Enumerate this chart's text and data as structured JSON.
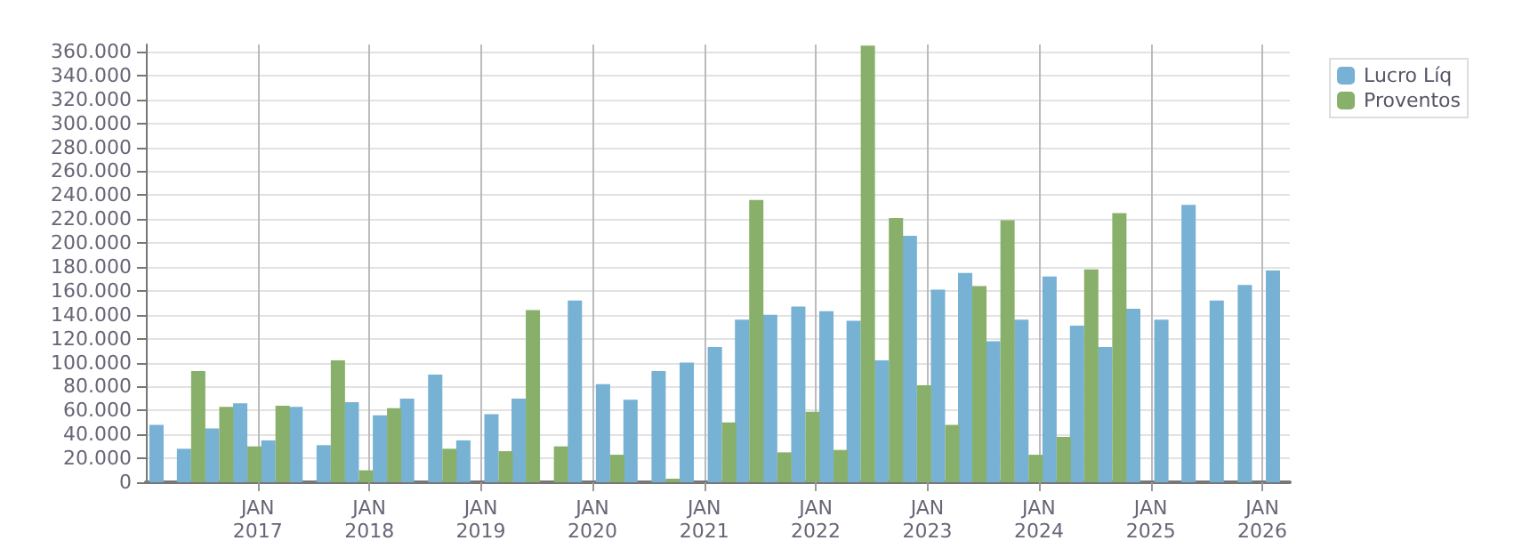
{
  "chart_data": {
    "type": "bar",
    "x": [
      "2016-02-28",
      "2016-05-28",
      "2016-08-28",
      "2016-11-28",
      "2017-02-28",
      "2017-05-28",
      "2017-08-28",
      "2017-11-28",
      "2018-02-28",
      "2018-05-28",
      "2018-08-28",
      "2018-11-28",
      "2019-02-28",
      "2019-05-28",
      "2019-08-28",
      "2019-11-28",
      "2020-02-28",
      "2020-05-28",
      "2020-08-28",
      "2020-11-28",
      "2021-02-28",
      "2021-05-28",
      "2021-08-28",
      "2021-11-28",
      "2022-02-28",
      "2022-05-28",
      "2022-08-28",
      "2022-11-28",
      "2023-02-28",
      "2023-05-28",
      "2023-08-28",
      "2023-11-28",
      "2024-02-28",
      "2024-05-28",
      "2024-08-28",
      "2024-11-28",
      "2025-02-28",
      "2025-05-28",
      "2025-08-28",
      "2025-11-28",
      "2026-02-28"
    ],
    "series": [
      {
        "name": "Lucro Líq",
        "color": "#77b1d4",
        "values": [
          48000,
          28000,
          45000,
          66000,
          35000,
          63000,
          31000,
          67000,
          56000,
          70000,
          90000,
          35000,
          57000,
          70000,
          null,
          152000,
          82000,
          69000,
          93000,
          100000,
          113000,
          136000,
          140000,
          147000,
          143000,
          135000,
          102000,
          206000,
          161000,
          175000,
          118000,
          136000,
          172000,
          131000,
          113000,
          145000,
          136000,
          232000,
          152000,
          165000,
          177000
        ]
      },
      {
        "name": "Proventos",
        "color": "#89b06a",
        "values": [
          null,
          93000,
          63000,
          30000,
          64000,
          null,
          102000,
          10000,
          62000,
          null,
          28000,
          null,
          26000,
          144000,
          30000,
          null,
          23000,
          null,
          3000,
          null,
          50000,
          236000,
          25000,
          59000,
          27000,
          365000,
          221000,
          81000,
          48000,
          164000,
          219000,
          23000,
          38000,
          178000,
          225000,
          null,
          null,
          null,
          null,
          null,
          null
        ]
      }
    ],
    "xlim": [
      "2016-01-01",
      "2026-04-01"
    ],
    "xticks": [
      {
        "value": "2017-01-01",
        "label": "JAN\n2017"
      },
      {
        "value": "2018-01-01",
        "label": "JAN\n2018"
      },
      {
        "value": "2019-01-01",
        "label": "JAN\n2019"
      },
      {
        "value": "2020-01-01",
        "label": "JAN\n2020"
      },
      {
        "value": "2021-01-01",
        "label": "JAN\n2021"
      },
      {
        "value": "2022-01-01",
        "label": "JAN\n2022"
      },
      {
        "value": "2023-01-01",
        "label": "JAN\n2023"
      },
      {
        "value": "2024-01-01",
        "label": "JAN\n2024"
      },
      {
        "value": "2025-01-01",
        "label": "JAN\n2025"
      },
      {
        "value": "2026-01-01",
        "label": "JAN\n2026"
      }
    ],
    "ylim": [
      0,
      366000
    ],
    "yticks": [
      {
        "value": 0,
        "label": "0"
      },
      {
        "value": 20000,
        "label": "20.000"
      },
      {
        "value": 40000,
        "label": "40.000"
      },
      {
        "value": 60000,
        "label": "60.000"
      },
      {
        "value": 80000,
        "label": "80.000"
      },
      {
        "value": 100000,
        "label": "100.000"
      },
      {
        "value": 120000,
        "label": "120.000"
      },
      {
        "value": 140000,
        "label": "140.000"
      },
      {
        "value": 160000,
        "label": "160.000"
      },
      {
        "value": 180000,
        "label": "180.000"
      },
      {
        "value": 200000,
        "label": "200.000"
      },
      {
        "value": 220000,
        "label": "220.000"
      },
      {
        "value": 240000,
        "label": "240.000"
      },
      {
        "value": 260000,
        "label": "260.000"
      },
      {
        "value": 280000,
        "label": "280.000"
      },
      {
        "value": 300000,
        "label": "300.000"
      },
      {
        "value": 320000,
        "label": "320.000"
      },
      {
        "value": 340000,
        "label": "340.000"
      },
      {
        "value": 360000,
        "label": "360.000"
      }
    ],
    "grid": true,
    "legend": "top right"
  }
}
